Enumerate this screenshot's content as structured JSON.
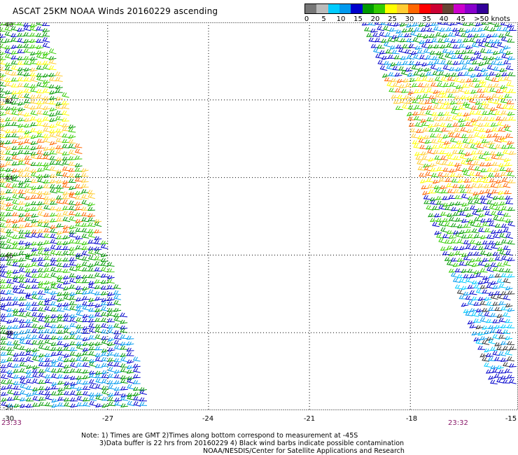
{
  "title": "ASCAT 25KM NOAA Winds 20160229 ascending",
  "legend": {
    "labels": [
      "0",
      "5",
      "10",
      "15",
      "20",
      "25",
      "30",
      "35",
      "40",
      "45",
      ">50 knots"
    ],
    "colors": [
      "#777777",
      "#bbbbbb",
      "#00ccff",
      "#0099ee",
      "#0000cc",
      "#009900",
      "#33cc00",
      "#ffff00",
      "#ffcc33",
      "#ff6600",
      "#ff0000",
      "#cc0033",
      "#664433",
      "#cc00cc",
      "#8800cc",
      "#330099"
    ]
  },
  "axes": {
    "x_ticks": [
      "-30",
      "-27",
      "-24",
      "-21",
      "-18",
      "-15"
    ],
    "y_ticks": [
      "-40",
      "-42",
      "-44",
      "-46",
      "-48",
      "-50"
    ]
  },
  "times": {
    "left": "23:33",
    "right": "23:32"
  },
  "notes": [
    "Note: 1) Times are GMT 2)Times along bottom correspond to measurement at -45S",
    "3)Data buffer is 22 hrs from 20160229 4) Black wind barbs indicate possible contamination",
    "NOAA/NESDIS/Center for Satellite Applications and Research"
  ],
  "swaths": {
    "left": {
      "bands": [
        {
          "lat_from": -40,
          "lat_to": -41,
          "colors": [
            "#0000cc",
            "#009900",
            "#33cc00"
          ]
        },
        {
          "lat_from": -41,
          "lat_to": -43,
          "colors": [
            "#009900",
            "#33cc00",
            "#ffff00",
            "#ffcc33"
          ]
        },
        {
          "lat_from": -43,
          "lat_to": -45.5,
          "colors": [
            "#009900",
            "#33cc00",
            "#ffcc33",
            "#ff6600"
          ]
        },
        {
          "lat_from": -45.5,
          "lat_to": -47,
          "colors": [
            "#33cc00",
            "#009900",
            "#0000cc"
          ]
        },
        {
          "lat_from": -47,
          "lat_to": -50,
          "colors": [
            "#0000cc",
            "#009900",
            "#0099ee"
          ]
        }
      ]
    },
    "right": {
      "bands": [
        {
          "lat_from": -40,
          "lat_to": -41.5,
          "colors": [
            "#0000cc",
            "#0099ee",
            "#009900"
          ]
        },
        {
          "lat_from": -41.5,
          "lat_to": -44.5,
          "colors": [
            "#ffff00",
            "#ffcc33",
            "#ff6600",
            "#33cc00"
          ]
        },
        {
          "lat_from": -44.5,
          "lat_to": -46.5,
          "colors": [
            "#009900",
            "#33cc00",
            "#0000cc"
          ]
        },
        {
          "lat_from": -46.5,
          "lat_to": -49,
          "colors": [
            "#0000cc",
            "#0099ee",
            "#00ccff",
            "#333333"
          ]
        }
      ]
    }
  }
}
